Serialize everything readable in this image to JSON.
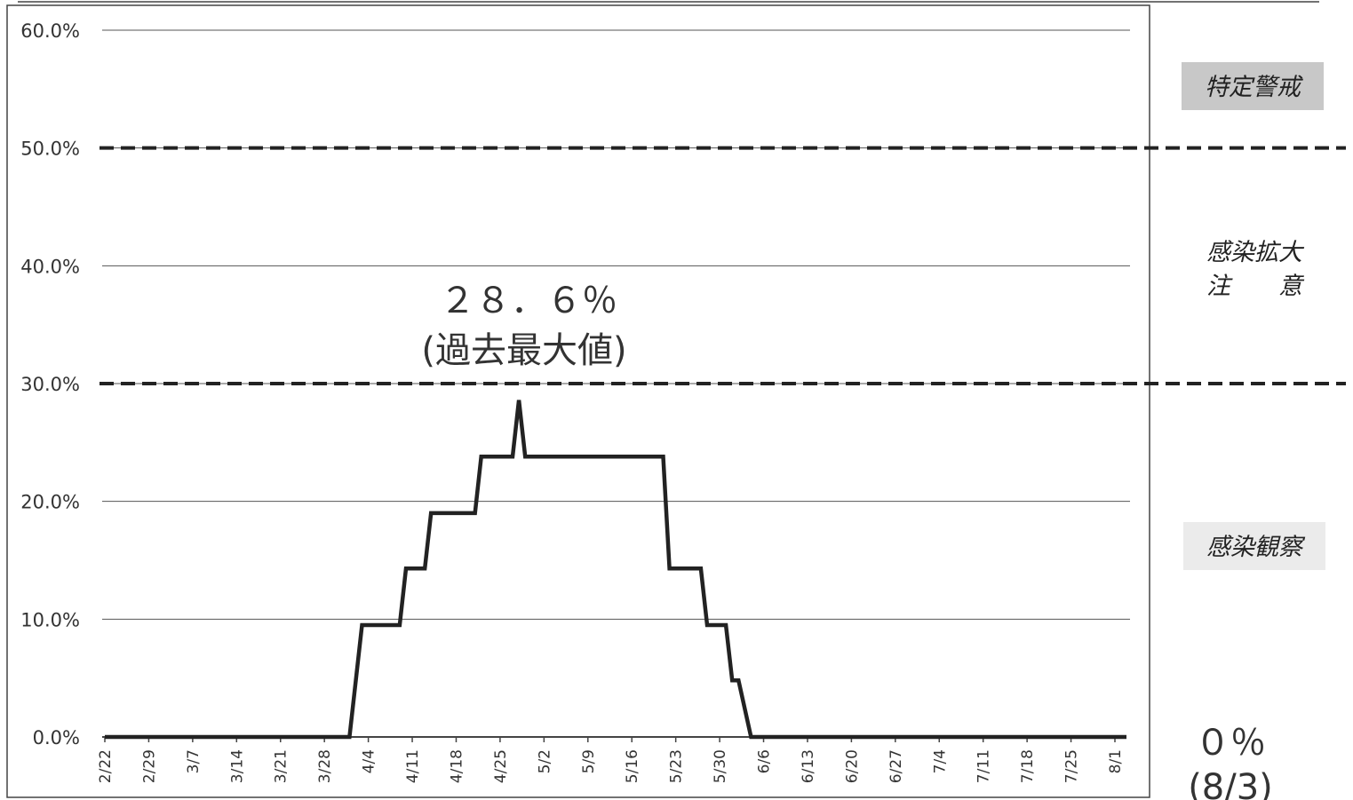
{
  "chart_data": {
    "type": "line",
    "title": "",
    "xlabel": "",
    "ylabel": "",
    "ylim": [
      0,
      60
    ],
    "y_ticks": [
      "0.0%",
      "10.0%",
      "20.0%",
      "30.0%",
      "40.0%",
      "50.0%",
      "60.0%"
    ],
    "grid": true,
    "x_tick_labels": [
      "2/22",
      "2/29",
      "3/7",
      "3/14",
      "3/21",
      "3/28",
      "4/4",
      "4/11",
      "4/18",
      "4/25",
      "5/2",
      "5/9",
      "5/16",
      "5/23",
      "5/30",
      "6/6",
      "6/13",
      "6/20",
      "6/27",
      "7/4",
      "7/11",
      "7/18",
      "7/25",
      "8/1"
    ],
    "series": [
      {
        "points": [
          {
            "x": "2/22",
            "y": 0
          },
          {
            "x": "4/1",
            "y": 0
          },
          {
            "x": "4/3",
            "y": 9.5
          },
          {
            "x": "4/9",
            "y": 9.5
          },
          {
            "x": "4/10",
            "y": 14.3
          },
          {
            "x": "4/13",
            "y": 14.3
          },
          {
            "x": "4/14",
            "y": 19.0
          },
          {
            "x": "4/21",
            "y": 19.0
          },
          {
            "x": "4/22",
            "y": 23.8
          },
          {
            "x": "4/27",
            "y": 23.8
          },
          {
            "x": "4/28",
            "y": 28.6
          },
          {
            "x": "4/29",
            "y": 23.8
          },
          {
            "x": "5/21",
            "y": 23.8
          },
          {
            "x": "5/22",
            "y": 14.3
          },
          {
            "x": "5/27",
            "y": 14.3
          },
          {
            "x": "5/28",
            "y": 9.5
          },
          {
            "x": "5/31",
            "y": 9.5
          },
          {
            "x": "6/1",
            "y": 4.8
          },
          {
            "x": "6/2",
            "y": 4.8
          },
          {
            "x": "6/4",
            "y": 0
          },
          {
            "x": "8/3",
            "y": 0
          }
        ]
      }
    ],
    "threshold_lines": [
      {
        "y": 30,
        "style": "dashed"
      },
      {
        "y": 50,
        "style": "dashed"
      }
    ],
    "zones": [
      {
        "label": "特定警戒",
        "boxed": true
      },
      {
        "label_line1": "感染拡大",
        "label_line2": "注　　意",
        "boxed": false
      },
      {
        "label": "感染観察",
        "boxed": true
      }
    ],
    "annotations": {
      "peak_value": "２８．６％",
      "peak_note": "(過去最大値)",
      "current_value": "０％",
      "current_date": "(8/3)"
    },
    "colors": {
      "line": "#222222",
      "grid": "#555555",
      "zone_box": "#c8c8c8"
    }
  }
}
